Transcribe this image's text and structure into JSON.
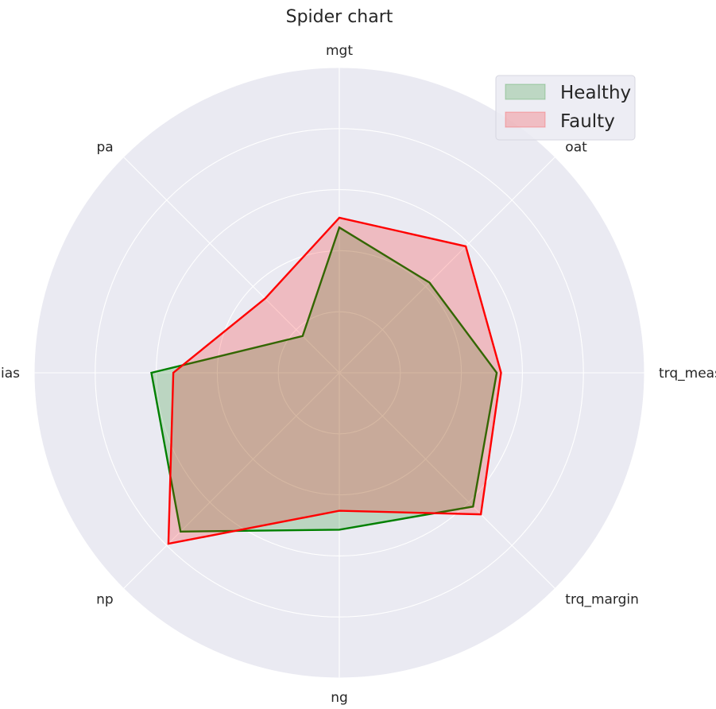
{
  "chart_data": {
    "type": "radar",
    "title": "Spider chart",
    "categories": [
      "mgt",
      "oat",
      "trq_measured",
      "trq_margin",
      "ng",
      "np",
      "ias",
      "pa"
    ],
    "rmax": 5,
    "rings": [
      1,
      2,
      3,
      4,
      5
    ],
    "grid": true,
    "legend_position": "top-right",
    "series": [
      {
        "name": "Healthy",
        "values": [
          2.38,
          2.09,
          2.58,
          3.1,
          2.57,
          3.68,
          3.08,
          0.85
        ],
        "color": "#008000"
      },
      {
        "name": "Faulty",
        "values": [
          2.54,
          2.93,
          2.65,
          3.28,
          2.26,
          3.96,
          2.72,
          1.72
        ],
        "color": "#ff0000"
      }
    ]
  },
  "colors": {
    "panel": "#eaeaf2",
    "grid": "#ffffff",
    "text": "#262626"
  }
}
